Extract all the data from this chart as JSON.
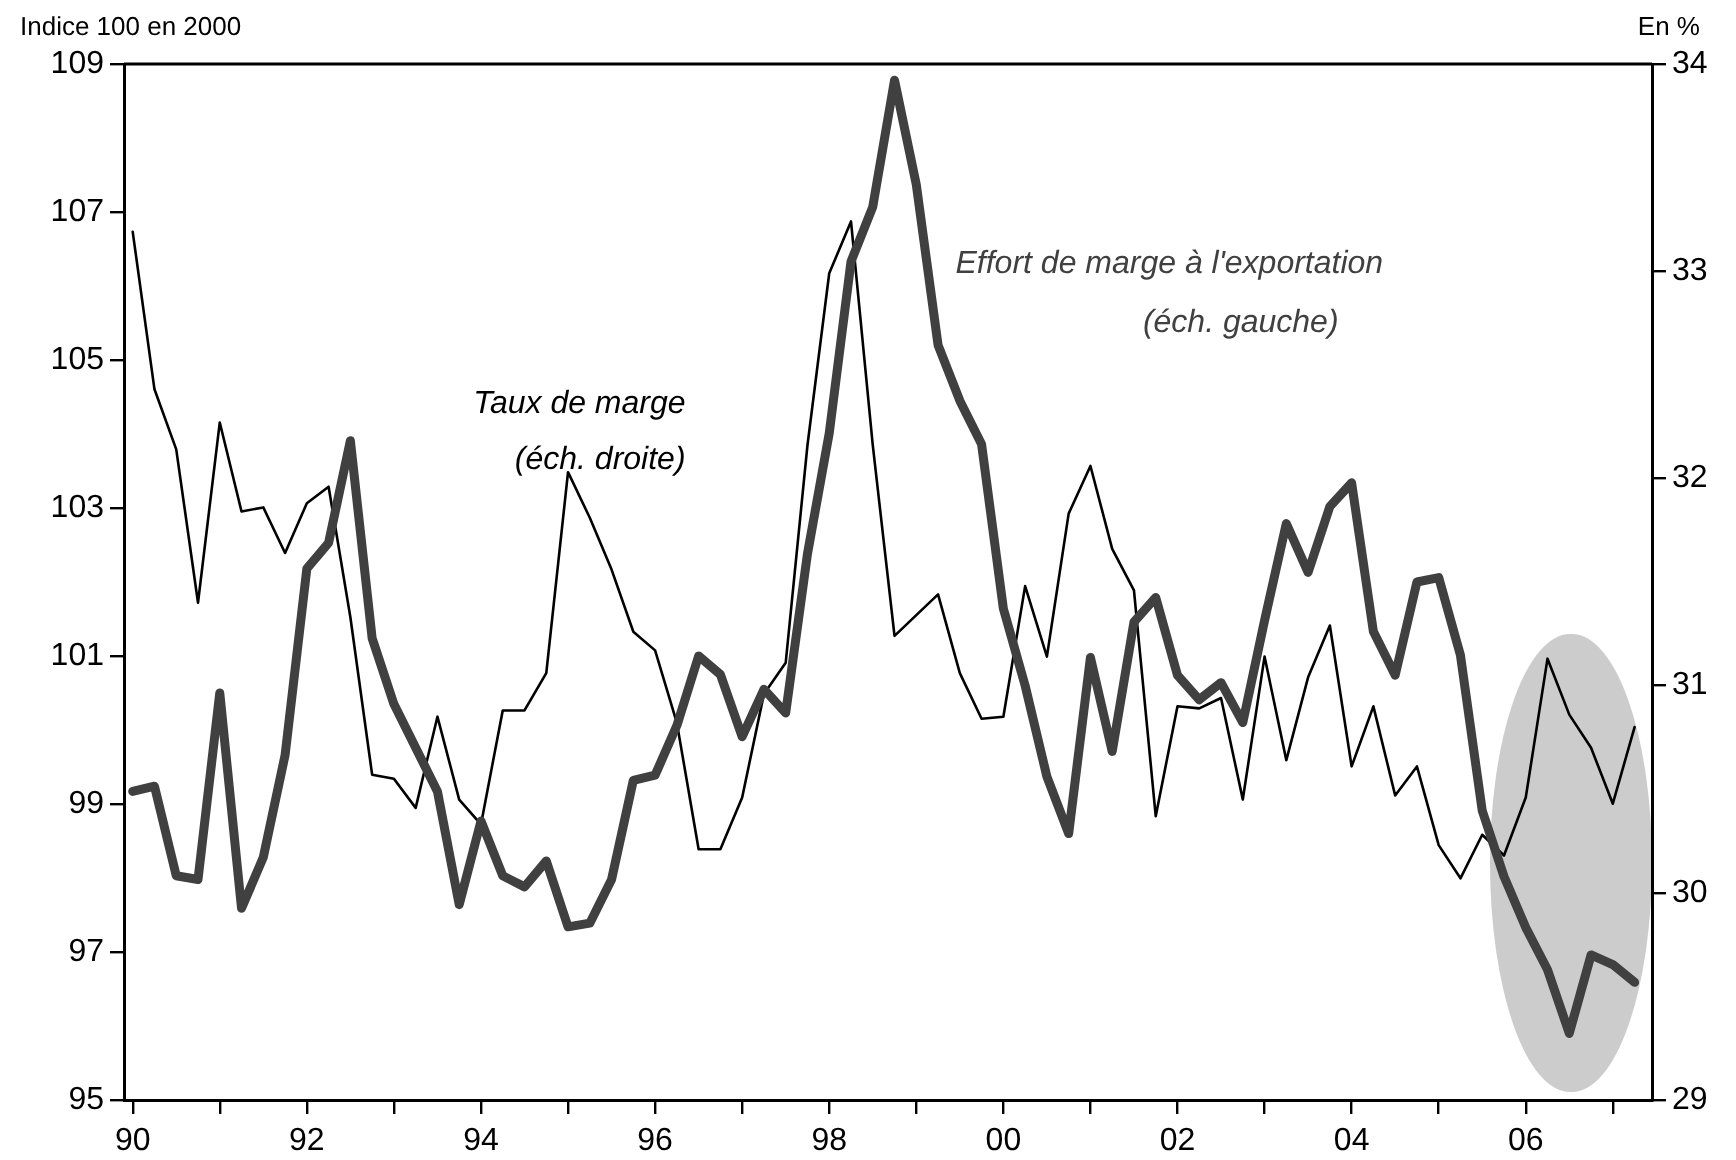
{
  "chart_data": {
    "type": "line",
    "ylabel": "Indice 100 en 2000",
    "y2label": "En %",
    "x": [
      1990,
      1990.25,
      1990.5,
      1990.75,
      1991,
      1991.25,
      1991.5,
      1991.75,
      1992,
      1992.25,
      1992.5,
      1992.75,
      1993,
      1993.25,
      1993.5,
      1993.75,
      1994,
      1994.25,
      1994.5,
      1994.75,
      1995,
      1995.25,
      1995.5,
      1995.75,
      1996,
      1996.25,
      1996.5,
      1996.75,
      1997,
      1997.25,
      1997.5,
      1997.75,
      1998,
      1998.25,
      1998.5,
      1998.75,
      1999,
      1999.25,
      1999.5,
      1999.75,
      2000,
      2000.25,
      2000.5,
      2000.75,
      2001,
      2001.25,
      2001.5,
      2001.75,
      2002,
      2002.25,
      2002.5,
      2002.75,
      2003,
      2003.25,
      2003.5,
      2003.75,
      2004,
      2004.25,
      2004.5,
      2004.75,
      2005,
      2005.25,
      2005.5,
      2005.75,
      2006,
      2006.25,
      2006.5,
      2006.75,
      2007,
      2007.25
    ],
    "series": [
      {
        "name": "Effort de marge à l'exportation",
        "color": "#404040",
        "values": [
          99.17,
          99.24,
          98.03,
          97.98,
          100.5,
          97.59,
          98.28,
          99.66,
          102.18,
          102.53,
          103.91,
          101.24,
          100.35,
          99.76,
          99.17,
          97.64,
          98.77,
          98.03,
          97.88,
          98.23,
          97.34,
          97.39,
          97.98,
          99.32,
          99.39,
          100.06,
          101.0,
          100.75,
          99.91,
          100.55,
          100.23,
          102.38,
          104.01,
          106.33,
          107.07,
          108.78,
          107.37,
          105.2,
          104.45,
          103.86,
          101.64,
          100.6,
          99.37,
          98.6,
          100.98,
          99.71,
          101.46,
          101.79,
          100.74,
          100.41,
          100.64,
          100.1,
          101.48,
          102.79,
          102.13,
          103.02,
          103.34,
          101.33,
          100.74,
          102.0,
          102.06,
          101.01,
          98.91,
          98.02,
          97.33,
          96.76,
          95.9,
          96.96,
          96.83,
          96.59
        ]
      },
      {
        "name": "Taux de marge",
        "color": "#000000",
        "axis": "y2",
        "values": [
          33.19,
          32.43,
          32.14,
          31.4,
          32.27,
          31.84,
          31.86,
          31.64,
          31.88,
          31.96,
          31.33,
          30.57,
          30.55,
          30.41,
          30.85,
          30.45,
          30.33,
          30.88,
          30.88,
          31.06,
          32.03,
          31.81,
          31.56,
          31.26,
          31.17,
          30.82,
          30.21,
          30.21,
          30.46,
          30.96,
          31.11,
          32.16,
          32.99,
          33.24,
          32.16,
          31.24,
          31.34,
          31.44,
          31.06,
          30.84,
          30.85,
          31.48,
          31.14,
          31.83,
          32.06,
          31.66,
          31.46,
          30.37,
          30.9,
          30.89,
          30.94,
          30.45,
          31.14,
          30.64,
          31.04,
          31.29,
          30.61,
          30.9,
          30.47,
          30.61,
          30.23,
          30.07,
          30.28,
          30.18,
          30.46,
          31.13,
          30.86,
          30.7,
          30.43,
          30.8
        ]
      }
    ],
    "annotations": [
      "(éch. gauche)",
      "(éch. droite)"
    ],
    "xlim": [
      1989.9,
      2007.45
    ],
    "xticks": [
      {
        "value": 1990,
        "label": "90"
      },
      {
        "value": 1991,
        "label": null
      },
      {
        "value": 1992,
        "label": "92"
      },
      {
        "value": 1993,
        "label": null
      },
      {
        "value": 1994,
        "label": "94"
      },
      {
        "value": 1995,
        "label": null
      },
      {
        "value": 1996,
        "label": "96"
      },
      {
        "value": 1997,
        "label": null
      },
      {
        "value": 1998,
        "label": "98"
      },
      {
        "value": 1999,
        "label": null
      },
      {
        "value": 2000,
        "label": "00"
      },
      {
        "value": 2001,
        "label": null
      },
      {
        "value": 2002,
        "label": "02"
      },
      {
        "value": 2003,
        "label": null
      },
      {
        "value": 2004,
        "label": "04"
      },
      {
        "value": 2005,
        "label": null
      },
      {
        "value": 2006,
        "label": "06"
      },
      {
        "value": 2007,
        "label": null
      }
    ],
    "ylim": [
      95,
      109
    ],
    "yticks": [
      95,
      97,
      99,
      101,
      103,
      105,
      107,
      109
    ],
    "y2lim": [
      29,
      34
    ],
    "y2ticks": [
      29,
      30,
      31,
      32,
      33,
      34
    ],
    "grid": false,
    "legend": false
  }
}
